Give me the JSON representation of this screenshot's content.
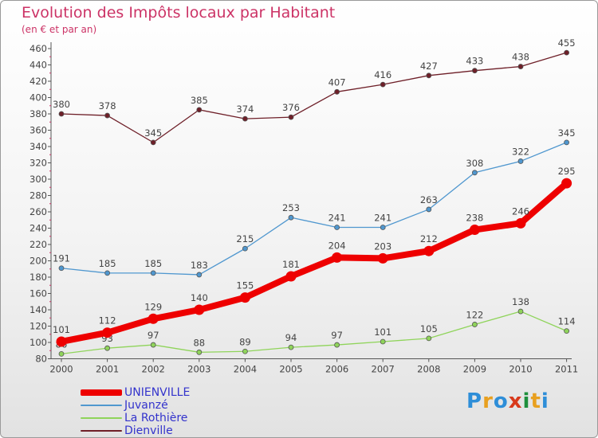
{
  "chart_data": {
    "type": "line",
    "title": "Evolution des Impôts locaux par Habitant",
    "subtitle": "(en € et par an)",
    "categories": [
      "2000",
      "2001",
      "2002",
      "2003",
      "2004",
      "2005",
      "2006",
      "2007",
      "2008",
      "2009",
      "2010",
      "2011"
    ],
    "ylim": [
      80,
      460
    ],
    "yticks": [
      80,
      100,
      120,
      140,
      160,
      180,
      200,
      220,
      240,
      260,
      280,
      300,
      320,
      340,
      360,
      380,
      400,
      420,
      440,
      460
    ],
    "grid": false,
    "legend_position": "bottom-left",
    "series": [
      {
        "name": "UNIENVILLE",
        "color": "#ee0000",
        "values": [
          101,
          112,
          129,
          140,
          155,
          181,
          204,
          203,
          212,
          238,
          246,
          295
        ]
      },
      {
        "name": "Juvanzé",
        "color": "#4f97cf",
        "values": [
          191,
          185,
          185,
          183,
          215,
          253,
          241,
          241,
          263,
          308,
          322,
          345
        ]
      },
      {
        "name": "La Rothière",
        "color": "#8fd45a",
        "values": [
          86,
          93,
          97,
          88,
          89,
          94,
          97,
          101,
          105,
          122,
          138,
          114
        ]
      },
      {
        "name": "Dienville",
        "color": "#6e1f28",
        "values": [
          380,
          378,
          345,
          385,
          374,
          376,
          407,
          416,
          427,
          433,
          438,
          455
        ]
      }
    ]
  },
  "logo": {
    "text": "Proxiti",
    "colors": [
      "#2e8ed8",
      "#e8a020",
      "#2e8ed8",
      "#d83a1c",
      "#1e8f3c",
      "#e8a020",
      "#2e8ed8"
    ]
  }
}
